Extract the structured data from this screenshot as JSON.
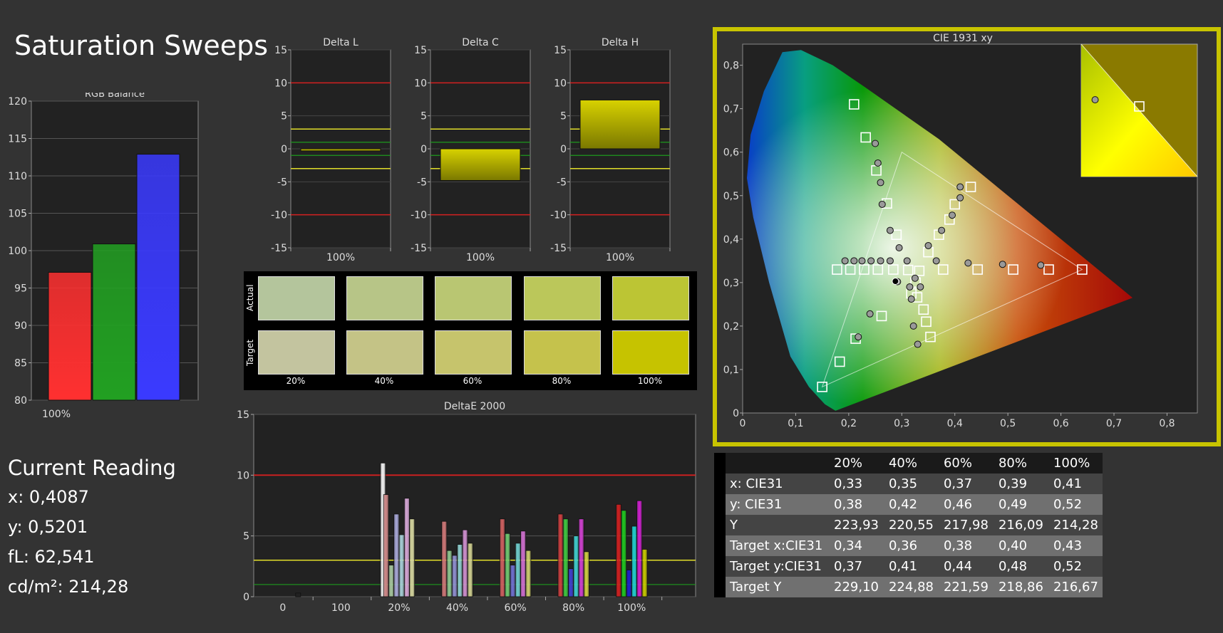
{
  "page_title": "Saturation Sweeps",
  "current_reading": {
    "title": "Current Reading",
    "lines": [
      "x: 0,4087",
      "y: 0,5201",
      "fL: 62,541",
      "cd/m²: 214,28"
    ]
  },
  "colors": {
    "background": "#333333",
    "accent_frame": "#c8c400",
    "red_line": "#d42020",
    "yellow_line": "#e2de2a",
    "green_line": "#1e9a1e"
  },
  "chart_data": [
    {
      "id": "rgb-balance",
      "type": "bar",
      "title": "RGB Balance",
      "categories": [
        "100%"
      ],
      "series": [
        {
          "name": "R",
          "color": "#ff3030",
          "values": [
            97.1
          ]
        },
        {
          "name": "G",
          "color": "#22a022",
          "values": [
            100.9
          ]
        },
        {
          "name": "B",
          "color": "#3a3aff",
          "values": [
            112.9
          ]
        }
      ],
      "ylim": [
        80,
        120
      ],
      "yticks": [
        80,
        85,
        90,
        95,
        100,
        105,
        110,
        115,
        120
      ]
    },
    {
      "id": "delta-l",
      "type": "bar",
      "title": "Delta L",
      "categories": [
        "100%"
      ],
      "values": [
        -0.3
      ],
      "ylim": [
        -15,
        15
      ],
      "yticks": [
        -15,
        -10,
        -5,
        0,
        5,
        10,
        15
      ],
      "reference_lines": {
        "red": [
          10,
          -10
        ],
        "yellow": [
          3,
          -3
        ],
        "green": [
          1,
          -1
        ]
      }
    },
    {
      "id": "delta-c",
      "type": "bar",
      "title": "Delta C",
      "categories": [
        "100%"
      ],
      "values": [
        -4.8
      ],
      "ylim": [
        -15,
        15
      ],
      "yticks": [
        -15,
        -10,
        -5,
        0,
        5,
        10,
        15
      ],
      "reference_lines": {
        "red": [
          10,
          -10
        ],
        "yellow": [
          3,
          -3
        ],
        "green": [
          1,
          -1
        ]
      }
    },
    {
      "id": "delta-h",
      "type": "bar",
      "title": "Delta H",
      "categories": [
        "100%"
      ],
      "values": [
        7.4
      ],
      "ylim": [
        -15,
        15
      ],
      "yticks": [
        -15,
        -10,
        -5,
        0,
        5,
        10,
        15
      ],
      "reference_lines": {
        "red": [
          10,
          -10
        ],
        "yellow": [
          3,
          -3
        ],
        "green": [
          1,
          -1
        ]
      }
    },
    {
      "id": "deltae-2000",
      "type": "bar",
      "title": "DeltaE 2000",
      "categories": [
        "0",
        "100",
        "20%",
        "40%",
        "60%",
        "80%",
        "100%"
      ],
      "ylim": [
        0,
        15
      ],
      "yticks": [
        0,
        5,
        10,
        15
      ],
      "reference_lines": {
        "red": [
          10
        ],
        "yellow": [
          3
        ],
        "green": [
          1
        ]
      },
      "groups": [
        {
          "category": "0",
          "bars": [
            {
              "color": "#222222",
              "value": 0.3
            }
          ]
        },
        {
          "category": "100",
          "bars": [
            {
              "color": "#f4f4f4",
              "value": 11.0
            }
          ]
        },
        {
          "category": "20%",
          "bars": [
            {
              "color": "#d08888",
              "value": 8.4
            },
            {
              "color": "#a8c8a0",
              "value": 2.6
            },
            {
              "color": "#a8a8d8",
              "value": 6.8
            },
            {
              "color": "#a8d0d8",
              "value": 5.1
            },
            {
              "color": "#d8a8d8",
              "value": 8.1
            },
            {
              "color": "#d8d8a0",
              "value": 6.4
            }
          ]
        },
        {
          "category": "40%",
          "bars": [
            {
              "color": "#d07878",
              "value": 6.2
            },
            {
              "color": "#90c890",
              "value": 3.8
            },
            {
              "color": "#9090d0",
              "value": 3.4
            },
            {
              "color": "#90d0d0",
              "value": 4.3
            },
            {
              "color": "#d090d0",
              "value": 5.5
            },
            {
              "color": "#d0d090",
              "value": 4.4
            }
          ]
        },
        {
          "category": "60%",
          "bars": [
            {
              "color": "#d06060",
              "value": 6.4
            },
            {
              "color": "#70c870",
              "value": 5.2
            },
            {
              "color": "#7070d0",
              "value": 2.6
            },
            {
              "color": "#70d0d0",
              "value": 4.4
            },
            {
              "color": "#d070d0",
              "value": 5.4
            },
            {
              "color": "#d0d070",
              "value": 3.8
            }
          ]
        },
        {
          "category": "80%",
          "bars": [
            {
              "color": "#d04040",
              "value": 6.8
            },
            {
              "color": "#40c840",
              "value": 6.4
            },
            {
              "color": "#4040d0",
              "value": 2.3
            },
            {
              "color": "#40d0d0",
              "value": 5.0
            },
            {
              "color": "#d040d0",
              "value": 6.4
            },
            {
              "color": "#d0d040",
              "value": 3.7
            }
          ]
        },
        {
          "category": "100%",
          "bars": [
            {
              "color": "#d02020",
              "value": 7.6
            },
            {
              "color": "#20c820",
              "value": 7.1
            },
            {
              "color": "#2020d0",
              "value": 2.2
            },
            {
              "color": "#20d0d0",
              "value": 5.8
            },
            {
              "color": "#d020d0",
              "value": 7.9
            },
            {
              "color": "#c8c800",
              "value": 3.9
            }
          ]
        }
      ]
    },
    {
      "id": "cie-1931",
      "type": "scatter",
      "title": "CIE 1931 xy",
      "xlim": [
        0,
        0.84
      ],
      "ylim": [
        0,
        0.84
      ],
      "xticks": [
        "0",
        "0,1",
        "0,2",
        "0,3",
        "0,4",
        "0,5",
        "0,6",
        "0,7",
        "0,8"
      ],
      "yticks": [
        "0",
        "0,1",
        "0,2",
        "0,3",
        "0,4",
        "0,5",
        "0,6",
        "0,7",
        "0,8"
      ],
      "gamut_triangle": [
        [
          0.64,
          0.33
        ],
        [
          0.3,
          0.6
        ],
        [
          0.15,
          0.06
        ]
      ],
      "targets": [
        [
          0.21,
          0.71
        ],
        [
          0.232,
          0.634
        ],
        [
          0.252,
          0.558
        ],
        [
          0.272,
          0.482
        ],
        [
          0.29,
          0.41
        ],
        [
          0.312,
          0.329
        ],
        [
          0.329,
          0.266
        ],
        [
          0.341,
          0.238
        ],
        [
          0.346,
          0.21
        ],
        [
          0.354,
          0.175
        ],
        [
          0.318,
          0.275
        ],
        [
          0.262,
          0.223
        ],
        [
          0.213,
          0.171
        ],
        [
          0.183,
          0.118
        ],
        [
          0.15,
          0.06
        ],
        [
          0.178,
          0.33
        ],
        [
          0.203,
          0.33
        ],
        [
          0.229,
          0.33
        ],
        [
          0.255,
          0.33
        ],
        [
          0.284,
          0.33
        ],
        [
          0.378,
          0.33
        ],
        [
          0.443,
          0.33
        ],
        [
          0.51,
          0.33
        ],
        [
          0.577,
          0.33
        ],
        [
          0.64,
          0.33
        ],
        [
          0.35,
          0.37
        ],
        [
          0.37,
          0.41
        ],
        [
          0.39,
          0.445
        ],
        [
          0.4,
          0.48
        ],
        [
          0.43,
          0.52
        ],
        [
          0.333,
          0.327
        ],
        [
          0.326,
          0.3
        ]
      ],
      "measured": [
        [
          0.25,
          0.62
        ],
        [
          0.255,
          0.575
        ],
        [
          0.26,
          0.53
        ],
        [
          0.263,
          0.48
        ],
        [
          0.278,
          0.42
        ],
        [
          0.295,
          0.38
        ],
        [
          0.31,
          0.35
        ],
        [
          0.325,
          0.31
        ],
        [
          0.315,
          0.29
        ],
        [
          0.318,
          0.262
        ],
        [
          0.322,
          0.2
        ],
        [
          0.33,
          0.158
        ],
        [
          0.24,
          0.228
        ],
        [
          0.218,
          0.175
        ],
        [
          0.193,
          0.35
        ],
        [
          0.21,
          0.35
        ],
        [
          0.225,
          0.35
        ],
        [
          0.242,
          0.35
        ],
        [
          0.26,
          0.35
        ],
        [
          0.278,
          0.35
        ],
        [
          0.365,
          0.35
        ],
        [
          0.425,
          0.345
        ],
        [
          0.49,
          0.342
        ],
        [
          0.562,
          0.34
        ],
        [
          0.35,
          0.385
        ],
        [
          0.375,
          0.42
        ],
        [
          0.395,
          0.455
        ],
        [
          0.41,
          0.495
        ],
        [
          0.41,
          0.52
        ],
        [
          0.292,
          0.302
        ],
        [
          0.335,
          0.29
        ],
        [
          0.633,
          0.7
        ]
      ],
      "current_point": [
        0.288,
        0.303
      ]
    }
  ],
  "swatches": {
    "row_labels": [
      "Actual",
      "Target"
    ],
    "columns": [
      "20%",
      "40%",
      "60%",
      "80%",
      "100%"
    ],
    "actual": [
      "#b4c59c",
      "#b7c587",
      "#b9c672",
      "#bbc75a",
      "#bcc534"
    ],
    "target": [
      "#c3c49f",
      "#c4c386",
      "#c6c46c",
      "#c5c24c",
      "#c6c300"
    ]
  },
  "stats_table": {
    "columns": [
      "20%",
      "40%",
      "60%",
      "80%",
      "100%"
    ],
    "rows": [
      {
        "label": "x: CIE31",
        "values": [
          "0,33",
          "0,35",
          "0,37",
          "0,39",
          "0,41"
        ]
      },
      {
        "label": "y: CIE31",
        "values": [
          "0,38",
          "0,42",
          "0,46",
          "0,49",
          "0,52"
        ]
      },
      {
        "label": "Y",
        "values": [
          "223,93",
          "220,55",
          "217,98",
          "216,09",
          "214,28"
        ]
      },
      {
        "label": "Target x:CIE31",
        "values": [
          "0,34",
          "0,36",
          "0,38",
          "0,40",
          "0,43"
        ]
      },
      {
        "label": "Target y:CIE31",
        "values": [
          "0,37",
          "0,41",
          "0,44",
          "0,48",
          "0,52"
        ]
      },
      {
        "label": "Target Y",
        "values": [
          "229,10",
          "224,88",
          "221,59",
          "218,86",
          "216,67"
        ]
      }
    ]
  }
}
